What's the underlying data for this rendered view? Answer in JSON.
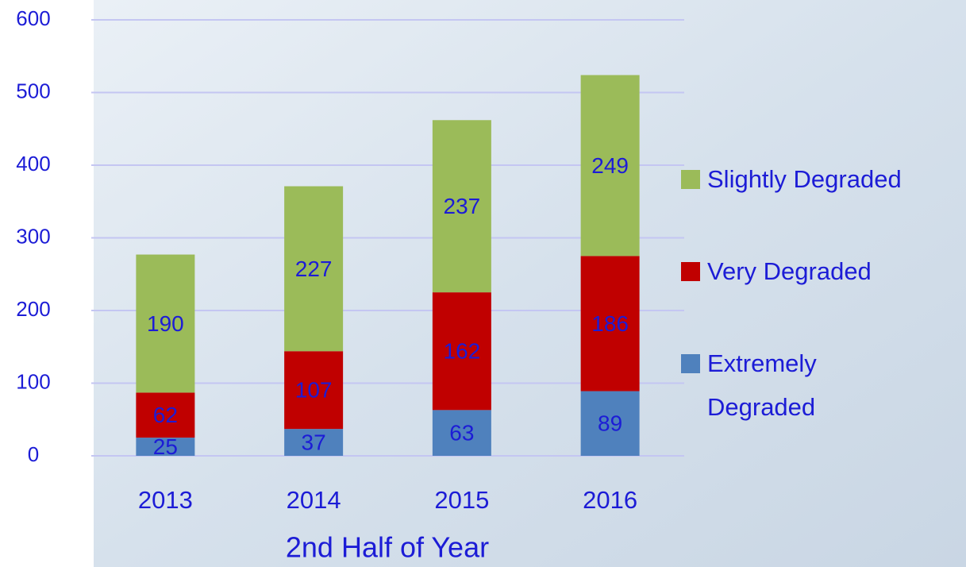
{
  "chart_data": {
    "type": "stacked-bar",
    "x_label": "2nd Half of Year",
    "categories": [
      "2013",
      "2014",
      "2015",
      "2016"
    ],
    "series": [
      {
        "name": "Extremely Degraded",
        "color": "#4f81bd",
        "values": [
          25,
          37,
          63,
          89
        ]
      },
      {
        "name": "Very Degraded",
        "color": "#c00000",
        "values": [
          62,
          107,
          162,
          186
        ]
      },
      {
        "name": "Slightly Degraded",
        "color": "#9bbb59",
        "values": [
          190,
          227,
          237,
          249
        ]
      }
    ],
    "ylim": [
      0,
      600
    ],
    "yticks": [
      0,
      100,
      200,
      300,
      400,
      500,
      600
    ],
    "grid": true,
    "legend": "right"
  }
}
